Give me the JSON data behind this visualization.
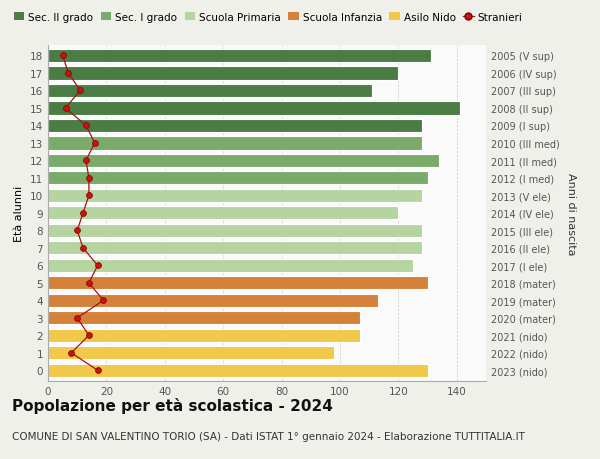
{
  "ages": [
    18,
    17,
    16,
    15,
    14,
    13,
    12,
    11,
    10,
    9,
    8,
    7,
    6,
    5,
    4,
    3,
    2,
    1,
    0
  ],
  "right_labels": [
    "2005 (V sup)",
    "2006 (IV sup)",
    "2007 (III sup)",
    "2008 (II sup)",
    "2009 (I sup)",
    "2010 (III med)",
    "2011 (II med)",
    "2012 (I med)",
    "2013 (V ele)",
    "2014 (IV ele)",
    "2015 (III ele)",
    "2016 (II ele)",
    "2017 (I ele)",
    "2018 (mater)",
    "2019 (mater)",
    "2020 (mater)",
    "2021 (nido)",
    "2022 (nido)",
    "2023 (nido)"
  ],
  "bar_values": [
    131,
    120,
    111,
    141,
    128,
    128,
    134,
    130,
    128,
    120,
    128,
    128,
    125,
    130,
    113,
    107,
    107,
    98,
    130
  ],
  "bar_colors": [
    "#4a7c44",
    "#4a7c44",
    "#4a7c44",
    "#4a7c44",
    "#4a7c44",
    "#7aab6a",
    "#7aab6a",
    "#7aab6a",
    "#b5d4a0",
    "#b5d4a0",
    "#b5d4a0",
    "#b5d4a0",
    "#b5d4a0",
    "#d4813a",
    "#d4813a",
    "#d4813a",
    "#f0c84a",
    "#f0c84a",
    "#f0c84a"
  ],
  "stranieri_values": [
    5,
    7,
    11,
    6,
    13,
    16,
    13,
    14,
    14,
    12,
    10,
    12,
    17,
    14,
    19,
    10,
    14,
    8,
    17
  ],
  "legend_labels": [
    "Sec. II grado",
    "Sec. I grado",
    "Scuola Primaria",
    "Scuola Infanzia",
    "Asilo Nido",
    "Stranieri"
  ],
  "legend_colors": [
    "#4a7c44",
    "#7aab6a",
    "#b5d4a0",
    "#d4813a",
    "#f0c84a",
    "#cc1111"
  ],
  "ylabel_left": "Età alunni",
  "ylabel_right": "Anni di nascita",
  "title": "Popolazione per età scolastica - 2024",
  "subtitle": "COMUNE DI SAN VALENTINO TORIO (SA) - Dati ISTAT 1° gennaio 2024 - Elaborazione TUTTITALIA.IT",
  "xlim": [
    0,
    150
  ],
  "xticks": [
    0,
    20,
    40,
    60,
    80,
    100,
    120,
    140
  ],
  "bg_color": "#f0f0eb",
  "bar_bg_color": "#fafafa",
  "grid_color": "#cccccc",
  "title_fontsize": 11,
  "subtitle_fontsize": 7.5,
  "tick_fontsize": 7.5,
  "label_fontsize": 8,
  "legend_fontsize": 7.5
}
